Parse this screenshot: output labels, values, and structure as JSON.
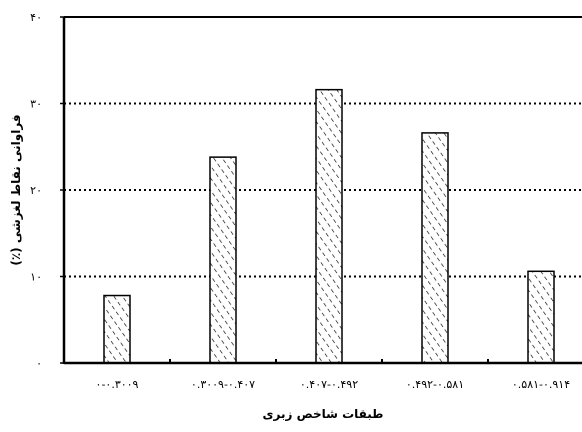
{
  "chart_data": {
    "type": "bar",
    "xlabel": "طبقات شاخص زبری",
    "ylabel": "فراوانی نقاط لغزشی (٪)",
    "categories": [
      "۰-۰.۳۰۰۹",
      "۰.۳۰۰۹-۰.۴۰۷",
      "۰.۴۰۷-۰.۴۹۲",
      "۰.۴۹۲-۰.۵۸۱",
      "۰.۵۸۱-۰.۹۱۴"
    ],
    "values": [
      7.8,
      23.8,
      31.6,
      26.6,
      10.6
    ],
    "ylim": [
      0,
      40
    ],
    "yticks": [
      0,
      10,
      20,
      30,
      40
    ],
    "ytick_labels": [
      "۰",
      "۱۰",
      "۲۰",
      "۳۰",
      "۴۰"
    ],
    "grid": "horizontal dotted",
    "bar_fill": "diagonal hatch"
  },
  "colors": {
    "axis": "#000000",
    "bar_fill": "#ffffff",
    "hatch": "#000000",
    "grid": "#000000"
  }
}
